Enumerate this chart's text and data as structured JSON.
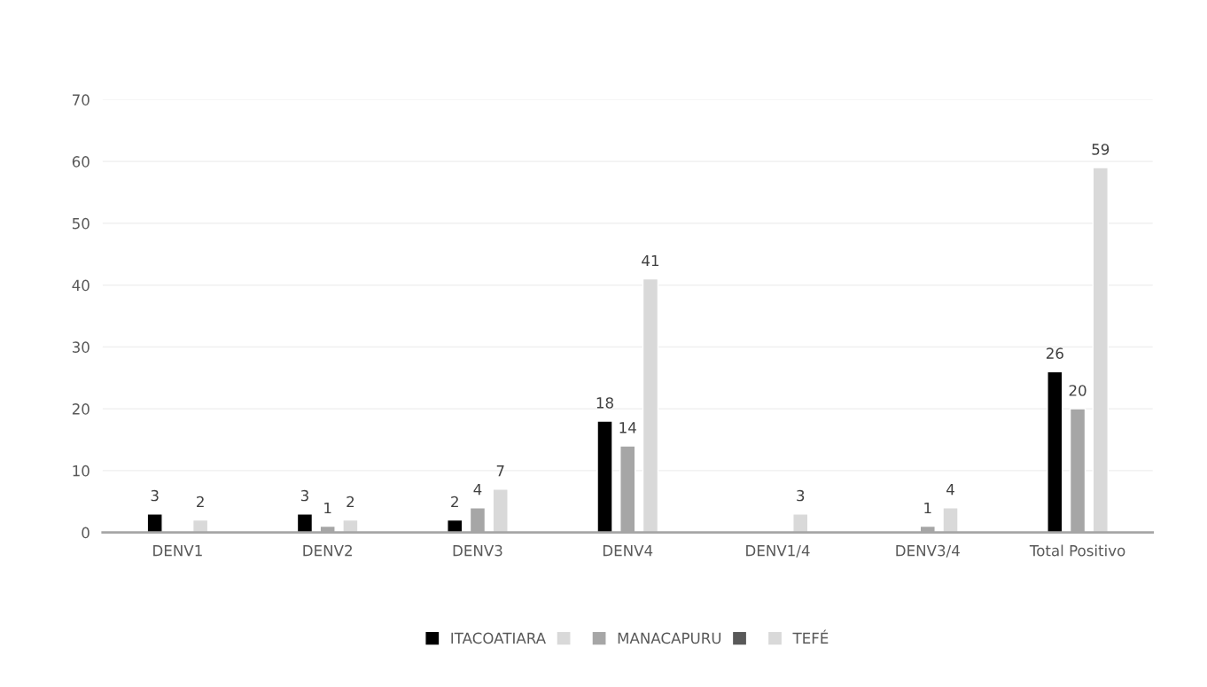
{
  "chart_data": {
    "type": "bar",
    "categories": [
      "DENV1",
      "DENV2",
      "DENV3",
      "DENV4",
      "DENV1/4",
      "DENV3/4",
      "Total Positivo"
    ],
    "series": [
      {
        "name": "ITACOATIARA",
        "color": "#000000",
        "values": [
          3,
          3,
          2,
          18,
          null,
          null,
          26
        ],
        "value_labels": [
          "3",
          "3",
          "2",
          "18",
          null,
          null,
          "26"
        ]
      },
      {
        "color": "#d9d9d9",
        "values": [
          null,
          null,
          null,
          null,
          null,
          null,
          null
        ]
      },
      {
        "name": "MANACAPURU",
        "color": "#a6a6a6",
        "values": [
          null,
          1,
          4,
          14,
          null,
          1,
          20
        ],
        "value_labels": [
          null,
          "1",
          "4",
          "14",
          null,
          "1",
          "20"
        ]
      },
      {
        "color": "#595959",
        "values": [
          null,
          null,
          null,
          null,
          null,
          null,
          null
        ]
      },
      {
        "name": "TEFÉ",
        "color": "#d9d9d9",
        "values": [
          2,
          2,
          7,
          41,
          3,
          4,
          59
        ],
        "value_labels": [
          "2",
          "2",
          "7",
          "41",
          "3",
          "4",
          "59"
        ]
      }
    ],
    "ylim": [
      0,
      70
    ],
    "yticks": [
      0,
      10,
      20,
      30,
      40,
      50,
      60,
      70
    ],
    "grid": "y",
    "legend": "bottom"
  }
}
